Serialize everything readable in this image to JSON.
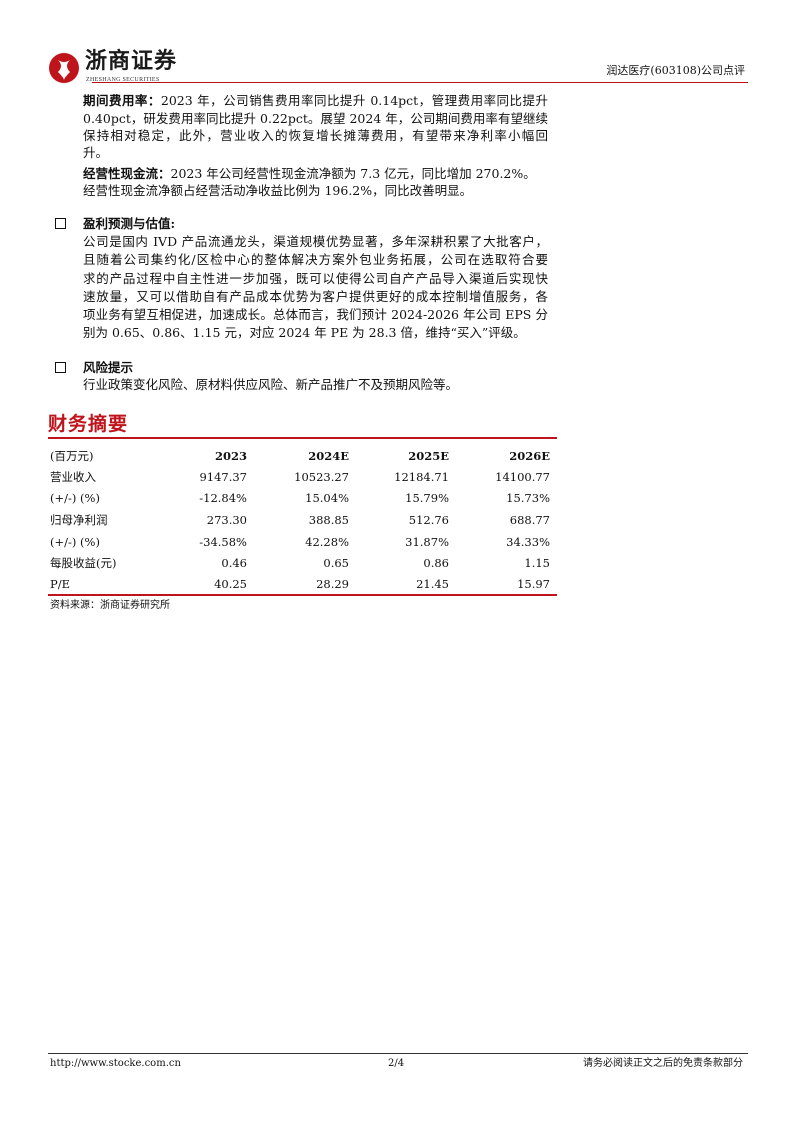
{
  "header": {
    "logo_cn": "浙商证券",
    "logo_en": "ZHESHANG SECURITIES",
    "report_title": "润达医疗(603108)公司点评",
    "accent": "#c0141c"
  },
  "body": {
    "p1": {
      "label": "期间费用率：",
      "lines": [
        "2023 年，公司销售费用率同比提升 0.14pct，管理费用率同比提升",
        "0.40pct，研发费用率同比提升 0.22pct。展望 2024 年，公司期间费用率有望继续",
        "保持相对稳定，此外，营业收入的恢复增长摊薄费用，有望带来净利率小幅回",
        "升。"
      ]
    },
    "p2": {
      "label": "经营性现金流：",
      "lines": [
        "2023 年公司经营性现金流净额为 7.3 亿元，同比增加 270.2%。",
        "经营性现金流净额占经营活动净收益比例为 196.2%，同比改善明显。"
      ]
    },
    "s1": {
      "heading": "盈利预测与估值:",
      "lines": [
        "公司是国内 IVD 产品流通龙头，渠道规模优势显著，多年深耕积累了大批客户，",
        "且随着公司集约化/区检中心的整体解决方案外包业务拓展，公司在选取符合要",
        "求的产品过程中自主性进一步加强，既可以使得公司自产产品导入渠道后实现快",
        "速放量，又可以借助自有产品成本优势为客户提供更好的成本控制增值服务，各",
        "项业务有望互相促进，加速成长。总体而言，我们预计 2024-2026 年公司 EPS 分",
        "别为 0.65、0.86、1.15 元，对应 2024 年 PE 为 28.3 倍，维持“买入”评级。"
      ]
    },
    "s2": {
      "heading": "风险提示",
      "lines": [
        "行业政策变化风险、原材料供应风险、新产品推广不及预期风险等。"
      ]
    }
  },
  "financials": {
    "title": "财务摘要",
    "header": [
      "(百万元)",
      "2023",
      "2024E",
      "2025E",
      "2026E"
    ],
    "rows": [
      [
        "营业收入",
        "9147.37",
        "10523.27",
        "12184.71",
        "14100.77"
      ],
      [
        "(+/-) (%)",
        "-12.84%",
        "15.04%",
        "15.79%",
        "15.73%"
      ],
      [
        "归母净利润",
        "273.30",
        "388.85",
        "512.76",
        "688.77"
      ],
      [
        "(+/-) (%)",
        "-34.58%",
        "42.28%",
        "31.87%",
        "34.33%"
      ],
      [
        "每股收益(元)",
        "0.46",
        "0.65",
        "0.86",
        "1.15"
      ],
      [
        "P/E",
        "40.25",
        "28.29",
        "21.45",
        "15.97"
      ]
    ],
    "source": "资料来源：浙商证券研究所"
  },
  "footer": {
    "url": "http://www.stocke.com.cn",
    "page": "2/4",
    "disclaimer": "请务必阅读正文之后的免责条款部分"
  }
}
